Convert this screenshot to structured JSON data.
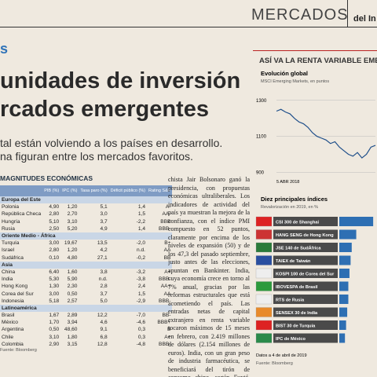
{
  "header": {
    "section": "MERCADOS",
    "paper": "del In"
  },
  "tag": "s",
  "headline": [
    "unidades de inversión",
    "rcados emergentes"
  ],
  "subhead": [
    "tal están volviendo a los países en desarrollo.",
    "na figuran entre los mercados favoritos."
  ],
  "table": {
    "title": "MAGNITUDES ECONÓMICAS",
    "columns": [
      "PIB (%)",
      "IPC (%)",
      "Tasa paro (%)",
      "Déficit público (%)",
      "Rating S&P"
    ],
    "groups": [
      {
        "name": "Europa del Este",
        "rows": [
          [
            "Polonia",
            "4,90",
            "1,20",
            "5,1",
            "1,4",
            "A-"
          ],
          [
            "República Checa",
            "2,80",
            "2,70",
            "3,0",
            "1,5",
            "AA-"
          ],
          [
            "Hungría",
            "5,10",
            "3,10",
            "3,7",
            "-2,2",
            "BBB"
          ],
          [
            "Rusia",
            "2,50",
            "5,20",
            "4,9",
            "1,4",
            "BBB-"
          ]
        ]
      },
      {
        "name": "Oriente Medio - África",
        "rows": [
          [
            "Turquía",
            "3,00",
            "19,67",
            "13,5",
            "-2,0",
            "B+"
          ],
          [
            "Israel",
            "2,80",
            "1,20",
            "4,2",
            "n.d.",
            "AA"
          ],
          [
            "Sudáfrica",
            "0,10",
            "4,80",
            "27,1",
            "-0,2",
            "BB"
          ]
        ]
      },
      {
        "name": "Asia",
        "rows": [
          [
            "China",
            "6,40",
            "1,60",
            "3,8",
            "-3,2",
            "A+"
          ],
          [
            "India",
            "5,30",
            "5,90",
            "n.d.",
            "-3,8",
            "BBB-"
          ],
          [
            "Hong Kong",
            "1,30",
            "2,30",
            "2,8",
            "2,4",
            "AA+"
          ],
          [
            "Corea del Sur",
            "3,00",
            "0,50",
            "3,7",
            "1,5",
            "AA"
          ],
          [
            "Indonesia",
            "5,18",
            "2,57",
            "5,0",
            "-2,9",
            "BBB-"
          ]
        ]
      },
      {
        "name": "Latinoamérica",
        "rows": [
          [
            "Brasil",
            "1,67",
            "2,89",
            "12,2",
            "-7,0",
            "BB-"
          ],
          [
            "México",
            "1,70",
            "3,94",
            "4,6",
            "-4,6",
            "BBB+"
          ],
          [
            "Argentina",
            "0,50",
            "48,60",
            "9,1",
            "0,3",
            "B"
          ],
          [
            "Chile",
            "3,10",
            "1,80",
            "6,8",
            "0,3",
            "A+"
          ],
          [
            "Colombia",
            "2,90",
            "3,15",
            "12,8",
            "-4,8",
            "BBB-"
          ]
        ]
      }
    ],
    "source": "Fuente: Bloomberg"
  },
  "body": "chista Jair Bolsonaro ganó la presidencia, con propuestas económicas ultraliberales. Los indicadores de actividad del país ya muestran la mejora de la confianza, con el índice PMI compuesto en 52 puntos, claramente por encima de los niveles de expansión (50) y de los 47,3 del pasado septiembre, justo antes de las elecciones, apuntan en Bankinter. India, cuya economía crece en torno al 7% anual, gracias por las reformas estructurales que está acometiendo el país. Las entradas netas de capital extranjero en renta variable tocaron máximos de 15 meses en febrero, con 2.419 millones de dólares (2.154 millones de euros). India, con un gran peso de industria farmacéutica, se beneficiará del tirón de consumo chino, según Fuxté. Esto también podría favorecer a Corea",
  "sidebar": {
    "title": "ASÍ VA LA RENTA VARIABLE EMERGE",
    "chart": {
      "title": "Evolución global",
      "subtitle": "MSCI Emerging Markets, en puntos",
      "x_label": "5 ABR 2018",
      "values": [
        1240,
        1250,
        1235,
        1225,
        1200,
        1180,
        1170,
        1150,
        1120,
        1100,
        1090,
        1080,
        1060,
        1070,
        1040,
        1020,
        1000,
        990,
        1010,
        980,
        1000,
        1040,
        1050
      ],
      "ylim": [
        880,
        1360
      ],
      "yticks": [
        1300,
        1100,
        900
      ]
    },
    "bars": {
      "title": "Diez principales índices",
      "subtitle": "Revalorización en 2019, en %",
      "names": [
        "CSI 300 de Shanghai",
        "HANG SENG de Hong Kong",
        "JSE 140 de SudÁfrica",
        "TAIEX de Taiwán",
        "KOSPI 100 de Corea del Sur",
        "IBOVESPA de Brasil",
        "RTS de Rusia",
        "SENSEX 30 de India",
        "BIST 30 de Turquía",
        "IPC de México"
      ],
      "values": [
        30,
        15,
        11,
        10,
        9,
        8,
        8,
        7,
        6,
        5
      ],
      "xlim": [
        0,
        32
      ],
      "color": "#2e6fb3"
    },
    "date": "Datos a 4 de abril de 2019",
    "source": "Fuente: Bloomberg"
  }
}
